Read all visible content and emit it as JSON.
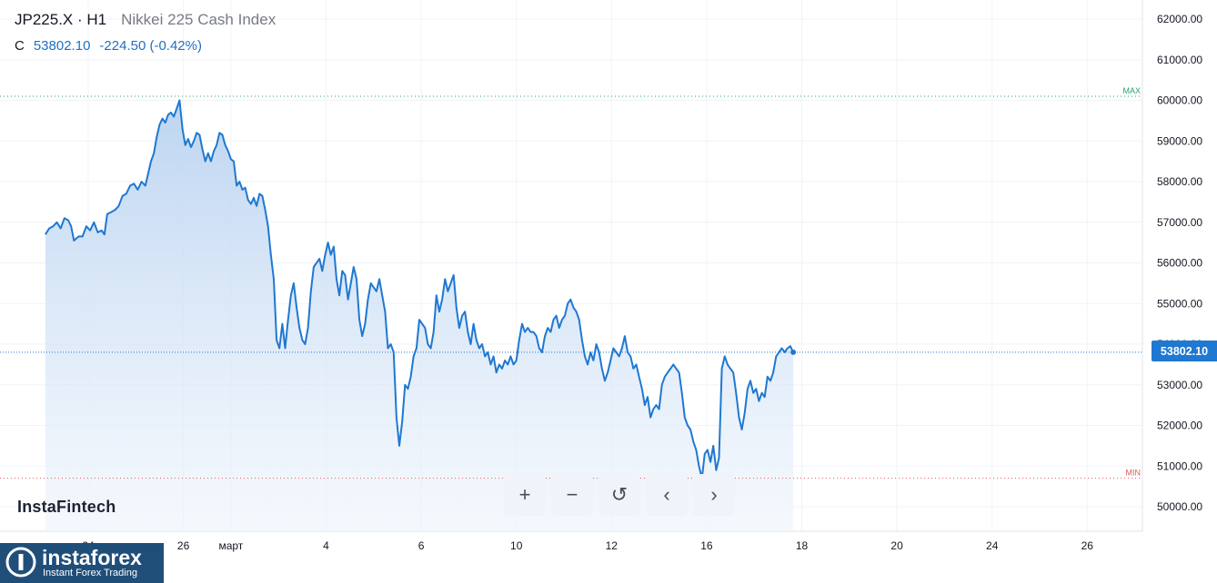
{
  "header": {
    "symbol": "JP225.X · H1",
    "description": "Nikkei 225 Cash Index",
    "ohlc_letter": "C",
    "last": "53802.10",
    "change": "-224.50 (-0.42%)"
  },
  "watermark": "InstaFintech",
  "price_label": "53802.10",
  "toolbar": {
    "zoom_in": "+",
    "zoom_out": "−",
    "reset": "↺",
    "left": "‹",
    "right": "›"
  },
  "logo": {
    "name": "instaforex",
    "tagline": "Instant Forex Trading"
  },
  "colors": {
    "line": "#1f78d1",
    "fill_top": "#b9d3f0",
    "fill_bottom": "#eef4fc",
    "max": "#26a269",
    "min": "#e05a5a",
    "current": "#1f78d1"
  },
  "chart_data": {
    "type": "area",
    "xlabel": "",
    "ylabel": "",
    "ylim": [
      49500,
      62400
    ],
    "y_ticks": [
      "62000.00",
      "61000.00",
      "60000.00",
      "59000.00",
      "58000.00",
      "57000.00",
      "56000.00",
      "55000.00",
      "54000.00",
      "53000.00",
      "52000.00",
      "51000.00",
      "50000.00"
    ],
    "x_ticks": [
      {
        "label": "24",
        "x": 0
      },
      {
        "label": "26",
        "x": 2
      },
      {
        "label": "март",
        "x": 3
      },
      {
        "label": "4",
        "x": 5
      },
      {
        "label": "6",
        "x": 7
      },
      {
        "label": "10",
        "x": 9
      },
      {
        "label": "12",
        "x": 11
      },
      {
        "label": "16",
        "x": 13
      },
      {
        "label": "18",
        "x": 15
      },
      {
        "label": "20",
        "x": 17
      },
      {
        "label": "24",
        "x": 19
      },
      {
        "label": "26",
        "x": 21
      }
    ],
    "max_label": "MAX",
    "max_value": 60100,
    "min_label": "MIN",
    "min_value": 50700,
    "current_value": 53802.1,
    "series": [
      {
        "values": [
          [
            -0.9,
            56700
          ],
          [
            -0.82,
            56850
          ],
          [
            -0.74,
            56900
          ],
          [
            -0.66,
            57000
          ],
          [
            -0.58,
            56850
          ],
          [
            -0.5,
            57100
          ],
          [
            -0.42,
            57050
          ],
          [
            -0.36,
            56900
          ],
          [
            -0.3,
            56550
          ],
          [
            -0.2,
            56650
          ],
          [
            -0.12,
            56650
          ],
          [
            -0.04,
            56900
          ],
          [
            0.04,
            56800
          ],
          [
            0.12,
            57000
          ],
          [
            0.2,
            56750
          ],
          [
            0.28,
            56800
          ],
          [
            0.34,
            56700
          ],
          [
            0.4,
            57200
          ],
          [
            0.48,
            57250
          ],
          [
            0.56,
            57300
          ],
          [
            0.64,
            57400
          ],
          [
            0.72,
            57650
          ],
          [
            0.8,
            57700
          ],
          [
            0.88,
            57900
          ],
          [
            0.96,
            57950
          ],
          [
            1.04,
            57800
          ],
          [
            1.12,
            58000
          ],
          [
            1.2,
            57900
          ],
          [
            1.26,
            58200
          ],
          [
            1.32,
            58500
          ],
          [
            1.38,
            58700
          ],
          [
            1.44,
            59100
          ],
          [
            1.5,
            59400
          ],
          [
            1.56,
            59550
          ],
          [
            1.62,
            59450
          ],
          [
            1.68,
            59650
          ],
          [
            1.74,
            59700
          ],
          [
            1.8,
            59600
          ],
          [
            1.86,
            59800
          ],
          [
            1.92,
            60000
          ],
          [
            1.98,
            59300
          ],
          [
            2.04,
            58900
          ],
          [
            2.1,
            59050
          ],
          [
            2.16,
            58850
          ],
          [
            2.22,
            59000
          ],
          [
            2.28,
            59200
          ],
          [
            2.34,
            59150
          ],
          [
            2.4,
            58800
          ],
          [
            2.46,
            58500
          ],
          [
            2.52,
            58700
          ],
          [
            2.58,
            58500
          ],
          [
            2.64,
            58750
          ],
          [
            2.7,
            58900
          ],
          [
            2.76,
            59200
          ],
          [
            2.82,
            59150
          ],
          [
            2.88,
            58900
          ],
          [
            2.94,
            58750
          ],
          [
            3.0,
            58550
          ],
          [
            3.06,
            58500
          ],
          [
            3.12,
            57900
          ],
          [
            3.18,
            58000
          ],
          [
            3.24,
            57800
          ],
          [
            3.3,
            57850
          ],
          [
            3.36,
            57550
          ],
          [
            3.42,
            57450
          ],
          [
            3.48,
            57600
          ],
          [
            3.54,
            57400
          ],
          [
            3.6,
            57700
          ],
          [
            3.66,
            57650
          ],
          [
            3.72,
            57300
          ],
          [
            3.78,
            56900
          ],
          [
            3.84,
            56200
          ],
          [
            3.9,
            55600
          ],
          [
            3.96,
            54100
          ],
          [
            4.02,
            53900
          ],
          [
            4.08,
            54500
          ],
          [
            4.14,
            53900
          ],
          [
            4.2,
            54600
          ],
          [
            4.26,
            55200
          ],
          [
            4.32,
            55500
          ],
          [
            4.38,
            54900
          ],
          [
            4.44,
            54400
          ],
          [
            4.5,
            54100
          ],
          [
            4.56,
            54000
          ],
          [
            4.62,
            54400
          ],
          [
            4.68,
            55300
          ],
          [
            4.74,
            55900
          ],
          [
            4.8,
            56000
          ],
          [
            4.86,
            56100
          ],
          [
            4.92,
            55800
          ],
          [
            4.98,
            56200
          ],
          [
            5.04,
            56500
          ],
          [
            5.1,
            56200
          ],
          [
            5.16,
            56400
          ],
          [
            5.22,
            55600
          ],
          [
            5.28,
            55200
          ],
          [
            5.34,
            55800
          ],
          [
            5.4,
            55700
          ],
          [
            5.46,
            55100
          ],
          [
            5.52,
            55500
          ],
          [
            5.58,
            55900
          ],
          [
            5.64,
            55600
          ],
          [
            5.7,
            54600
          ],
          [
            5.76,
            54200
          ],
          [
            5.82,
            54500
          ],
          [
            5.88,
            55100
          ],
          [
            5.94,
            55500
          ],
          [
            6.0,
            55400
          ],
          [
            6.06,
            55300
          ],
          [
            6.12,
            55600
          ],
          [
            6.18,
            55200
          ],
          [
            6.24,
            54800
          ],
          [
            6.3,
            53900
          ],
          [
            6.36,
            54000
          ],
          [
            6.42,
            53800
          ],
          [
            6.48,
            52200
          ],
          [
            6.54,
            51500
          ],
          [
            6.6,
            52100
          ],
          [
            6.66,
            53000
          ],
          [
            6.72,
            52900
          ],
          [
            6.78,
            53200
          ],
          [
            6.84,
            53700
          ],
          [
            6.9,
            53900
          ],
          [
            6.96,
            54600
          ],
          [
            7.02,
            54500
          ],
          [
            7.08,
            54400
          ],
          [
            7.14,
            54000
          ],
          [
            7.2,
            53900
          ],
          [
            7.26,
            54300
          ],
          [
            7.32,
            55200
          ],
          [
            7.38,
            54800
          ],
          [
            7.44,
            55100
          ],
          [
            7.5,
            55600
          ],
          [
            7.56,
            55300
          ],
          [
            7.62,
            55500
          ],
          [
            7.68,
            55700
          ],
          [
            7.74,
            54900
          ],
          [
            7.8,
            54400
          ],
          [
            7.86,
            54700
          ],
          [
            7.92,
            54800
          ],
          [
            7.98,
            54300
          ],
          [
            8.04,
            54000
          ],
          [
            8.1,
            54500
          ],
          [
            8.16,
            54100
          ],
          [
            8.22,
            53900
          ],
          [
            8.28,
            54000
          ],
          [
            8.34,
            53700
          ],
          [
            8.4,
            53800
          ],
          [
            8.46,
            53500
          ],
          [
            8.52,
            53700
          ],
          [
            8.58,
            53300
          ],
          [
            8.64,
            53500
          ],
          [
            8.7,
            53400
          ],
          [
            8.76,
            53600
          ],
          [
            8.82,
            53500
          ],
          [
            8.88,
            53700
          ],
          [
            8.94,
            53500
          ],
          [
            9.0,
            53600
          ],
          [
            9.06,
            54100
          ],
          [
            9.12,
            54500
          ],
          [
            9.18,
            54300
          ],
          [
            9.24,
            54400
          ],
          [
            9.3,
            54300
          ],
          [
            9.36,
            54300
          ],
          [
            9.42,
            54200
          ],
          [
            9.48,
            53900
          ],
          [
            9.54,
            53800
          ],
          [
            9.6,
            54200
          ],
          [
            9.66,
            54400
          ],
          [
            9.72,
            54300
          ],
          [
            9.78,
            54600
          ],
          [
            9.84,
            54700
          ],
          [
            9.9,
            54400
          ],
          [
            9.96,
            54600
          ],
          [
            10.02,
            54700
          ],
          [
            10.08,
            55000
          ],
          [
            10.14,
            55100
          ],
          [
            10.2,
            54900
          ],
          [
            10.26,
            54800
          ],
          [
            10.32,
            54600
          ],
          [
            10.38,
            54100
          ],
          [
            10.44,
            53700
          ],
          [
            10.5,
            53500
          ],
          [
            10.56,
            53800
          ],
          [
            10.62,
            53600
          ],
          [
            10.68,
            54000
          ],
          [
            10.74,
            53800
          ],
          [
            10.8,
            53400
          ],
          [
            10.86,
            53100
          ],
          [
            10.92,
            53300
          ],
          [
            10.98,
            53600
          ],
          [
            11.04,
            53900
          ],
          [
            11.1,
            53800
          ],
          [
            11.16,
            53700
          ],
          [
            11.22,
            53900
          ],
          [
            11.28,
            54200
          ],
          [
            11.34,
            53800
          ],
          [
            11.4,
            53700
          ],
          [
            11.46,
            53400
          ],
          [
            11.52,
            53500
          ],
          [
            11.58,
            53200
          ],
          [
            11.64,
            52900
          ],
          [
            11.7,
            52500
          ],
          [
            11.76,
            52700
          ],
          [
            11.82,
            52200
          ],
          [
            11.88,
            52400
          ],
          [
            11.94,
            52500
          ],
          [
            12.0,
            52400
          ],
          [
            12.06,
            53000
          ],
          [
            12.12,
            53200
          ],
          [
            12.18,
            53300
          ],
          [
            12.24,
            53400
          ],
          [
            12.3,
            53500
          ],
          [
            12.36,
            53400
          ],
          [
            12.42,
            53300
          ],
          [
            12.48,
            52800
          ],
          [
            12.54,
            52200
          ],
          [
            12.6,
            52000
          ],
          [
            12.66,
            51900
          ],
          [
            12.72,
            51600
          ],
          [
            12.78,
            51400
          ],
          [
            12.84,
            51000
          ],
          [
            12.9,
            50700
          ],
          [
            12.96,
            51300
          ],
          [
            13.02,
            51400
          ],
          [
            13.08,
            51100
          ],
          [
            13.14,
            51500
          ],
          [
            13.2,
            50900
          ],
          [
            13.26,
            51200
          ],
          [
            13.32,
            53400
          ],
          [
            13.38,
            53700
          ],
          [
            13.44,
            53500
          ],
          [
            13.5,
            53400
          ],
          [
            13.56,
            53300
          ],
          [
            13.62,
            52800
          ],
          [
            13.68,
            52200
          ],
          [
            13.74,
            51900
          ],
          [
            13.8,
            52300
          ],
          [
            13.86,
            52900
          ],
          [
            13.92,
            53100
          ],
          [
            13.98,
            52800
          ],
          [
            14.04,
            52900
          ],
          [
            14.1,
            52600
          ],
          [
            14.16,
            52800
          ],
          [
            14.22,
            52700
          ],
          [
            14.28,
            53200
          ],
          [
            14.34,
            53100
          ],
          [
            14.4,
            53300
          ],
          [
            14.46,
            53700
          ],
          [
            14.52,
            53800
          ],
          [
            14.58,
            53900
          ],
          [
            14.64,
            53800
          ],
          [
            14.7,
            53900
          ],
          [
            14.76,
            53950
          ],
          [
            14.82,
            53800
          ]
        ]
      }
    ]
  }
}
